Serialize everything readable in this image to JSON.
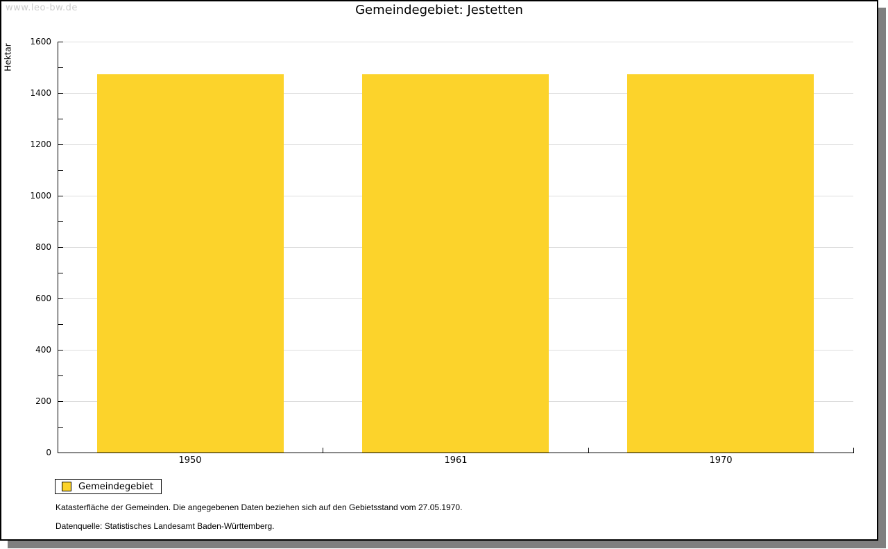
{
  "watermark": "www.leo-bw.de",
  "chart_data": {
    "type": "bar",
    "title": "Gemeindegebiet: Jestetten",
    "categories": [
      "1950",
      "1961",
      "1970"
    ],
    "series": [
      {
        "name": "Gemeindegebiet",
        "values": [
          1474,
          1474,
          1474
        ]
      }
    ],
    "xlabel": "",
    "ylabel": "Hektar",
    "ylim": [
      0,
      1600
    ],
    "ytick_major": 200,
    "ytick_minor": 100,
    "grid": true,
    "legend_position": "bottom-left"
  },
  "legend": {
    "items": [
      {
        "label": "Gemeindegebiet",
        "color": "#FCD32B"
      }
    ]
  },
  "footnotes": [
    "Katasterfläche der Gemeinden. Die angegebenen Daten beziehen sich auf den Gebietsstand vom 27.05.1970.",
    "Datenquelle: Statistisches Landesamt Baden-Württemberg."
  ],
  "colors": {
    "bar": "#FCD32B",
    "grid": "#DCDCDC",
    "axis": "#000000",
    "text": "#000000",
    "watermark": "#CCCCCC",
    "frame_border": "#000000",
    "frame_shadow": "#7F7F7F",
    "background": "#FFFFFF"
  }
}
